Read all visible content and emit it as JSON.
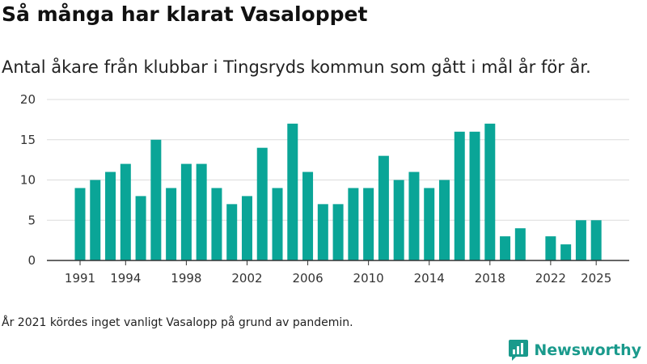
{
  "header": {
    "title": "Så många har klarat Vasaloppet",
    "subtitle": "Antal åkare från klubbar i Tingsryds kommun som gått i mål år för år."
  },
  "footer": {
    "note": "År 2021 kördes inget vanligt Vasalopp på grund av pandemin.",
    "brand": "Newsworthy"
  },
  "colors": {
    "bar": "#0aa597",
    "brand": "#1a9a8c"
  },
  "icons": {
    "brand_logo": "newsworthy-logo-icon"
  },
  "chart_data": {
    "type": "bar",
    "x": [
      1991,
      1992,
      1993,
      1994,
      1995,
      1996,
      1997,
      1998,
      1999,
      2000,
      2001,
      2002,
      2003,
      2004,
      2005,
      2006,
      2007,
      2008,
      2009,
      2010,
      2011,
      2012,
      2013,
      2014,
      2015,
      2016,
      2017,
      2018,
      2019,
      2020,
      2021,
      2022,
      2023,
      2024,
      2025
    ],
    "values": [
      9,
      10,
      11,
      12,
      8,
      15,
      9,
      12,
      12,
      9,
      7,
      8,
      14,
      9,
      17,
      11,
      7,
      7,
      9,
      9,
      13,
      10,
      11,
      9,
      10,
      16,
      16,
      17,
      3,
      4,
      null,
      3,
      2,
      5,
      5
    ],
    "x_ticks": [
      "1991",
      "1994",
      "1998",
      "2002",
      "2006",
      "2010",
      "2014",
      "2018",
      "2022",
      "2025"
    ],
    "y_ticks": [
      0,
      5,
      10,
      15,
      20
    ],
    "ylim": [
      0,
      20
    ],
    "grid": true,
    "legend": "none"
  }
}
